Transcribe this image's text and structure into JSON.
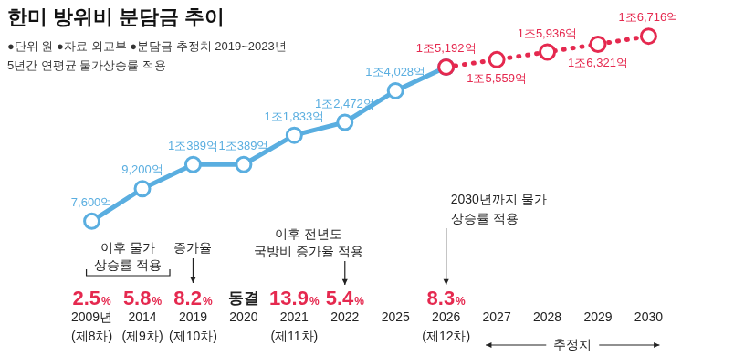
{
  "chart_data": {
    "type": "line",
    "title": "한미 방위비 분담금 추이",
    "subtitle": [
      "●단위 원 ●자료 외교부 ●분담금 추정치 2019~2023년",
      "5년간 연평균 물가상승률 적용"
    ],
    "categories": [
      "2009년",
      "2014",
      "2019",
      "2020",
      "2021",
      "2022",
      "2025",
      "2026",
      "2027",
      "2028",
      "2029",
      "2030"
    ],
    "rounds": [
      "(제8차)",
      "(제9차)",
      "(제10차)",
      null,
      "(제11차)",
      null,
      null,
      "(제12차)",
      null,
      null,
      null,
      null
    ],
    "rate_labels": [
      "2.5%",
      "5.8%",
      "8.2%",
      "동결",
      "13.9%",
      "5.4%",
      null,
      "8.3%",
      null,
      null,
      null,
      null
    ],
    "series": [
      {
        "color": "#5aaee0",
        "line_style": "solid",
        "marker": "circle",
        "values": [
          7600,
          9200,
          10389,
          10389,
          11833,
          12472,
          14028,
          15192,
          null,
          null,
          null,
          null
        ],
        "value_labels": [
          "7,600억",
          "9,200억",
          "1조389억",
          "1조389억",
          "1조1,833억",
          "1조2,472억",
          "1조4,028억",
          null,
          null,
          null,
          null,
          null
        ]
      },
      {
        "color": "#e5294f",
        "line_style": "dotted",
        "marker": "circle",
        "values": [
          null,
          null,
          null,
          null,
          null,
          null,
          null,
          15192,
          15559,
          15936,
          16321,
          16716
        ],
        "value_labels": [
          null,
          null,
          null,
          null,
          null,
          null,
          null,
          "1조5,192억",
          "1조5,559억",
          "1조5,936억",
          "1조6,321억",
          "1조6,716억"
        ]
      }
    ],
    "ylim": [
      6800,
      17600
    ],
    "grid": false,
    "data_labels": true,
    "tick_labels": "x",
    "annotations": [
      {
        "text": [
          "이후 물가",
          "상승률 적용"
        ],
        "from": "2009년",
        "to": "2014"
      },
      {
        "text": [
          "증가율"
        ],
        "at": "2019"
      },
      {
        "text": [
          "이후 전년도",
          "국방비 증가율 적용"
        ],
        "at": "2022"
      },
      {
        "text": [
          "2030년까지 물가",
          "상승률 적용"
        ],
        "at": "2026"
      },
      {
        "text": [
          "추정치"
        ],
        "from": "2027",
        "to": "2030"
      }
    ]
  }
}
